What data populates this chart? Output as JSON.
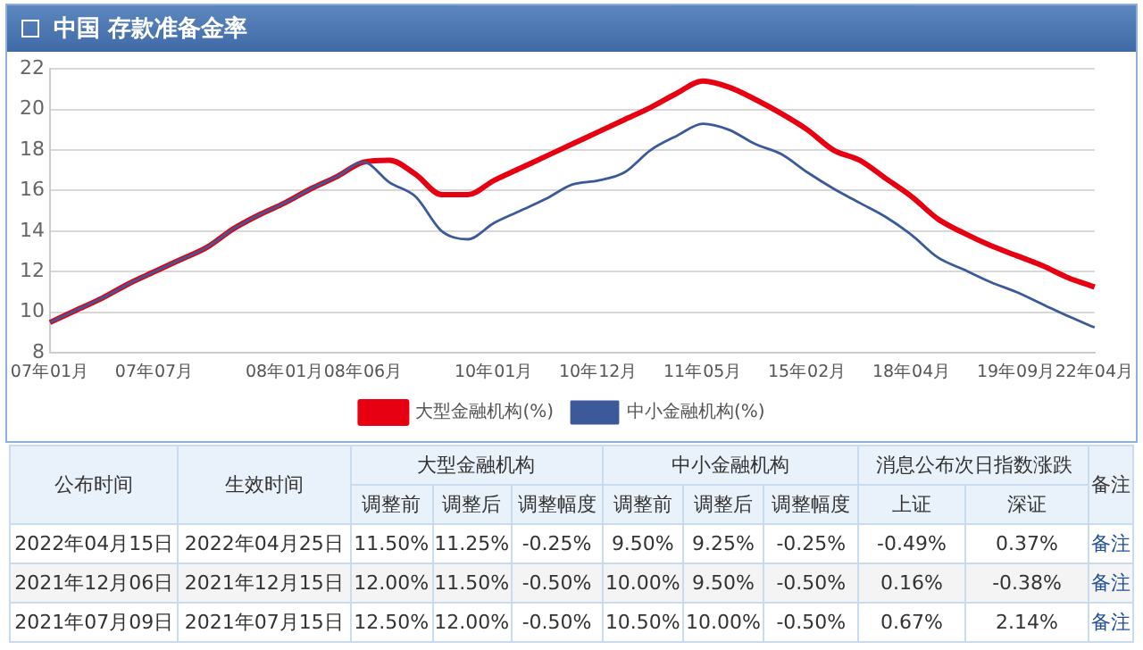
{
  "chart_data": [
    {
      "type": "line",
      "title": "中国 存款准备金率",
      "categories": [
        "07年01月",
        null,
        null,
        null,
        "07年07月",
        null,
        null,
        null,
        null,
        "08年01月",
        null,
        null,
        "08年06月",
        null,
        null,
        null,
        null,
        "10年01月",
        null,
        null,
        null,
        "10年12月",
        null,
        null,
        null,
        "11年05月",
        null,
        null,
        null,
        "15年02月",
        null,
        null,
        null,
        "18年04月",
        null,
        null,
        null,
        "19年09月",
        null,
        null,
        "22年04月"
      ],
      "series": [
        {
          "name": "大型金融机构(%)",
          "color": "#e60012",
          "values": [
            9.5,
            10.1,
            10.7,
            11.4,
            12.0,
            12.6,
            13.2,
            14.1,
            14.8,
            15.4,
            16.1,
            16.7,
            17.4,
            17.5,
            16.8,
            15.8,
            15.8,
            16.5,
            17.1,
            17.7,
            18.3,
            18.9,
            19.5,
            20.1,
            20.8,
            21.4,
            21.1,
            20.5,
            19.8,
            19.0,
            18.0,
            17.5,
            16.6,
            15.7,
            14.6,
            13.9,
            13.3,
            12.8,
            12.3,
            11.7,
            11.25
          ]
        },
        {
          "name": "中小金融机构(%)",
          "color": "#3c5a9a",
          "values": [
            9.5,
            10.1,
            10.7,
            11.4,
            12.0,
            12.6,
            13.2,
            14.1,
            14.8,
            15.4,
            16.1,
            16.7,
            17.4,
            16.4,
            15.7,
            14.0,
            13.6,
            14.4,
            15.0,
            15.6,
            16.3,
            16.5,
            16.9,
            18.0,
            18.7,
            19.3,
            19.0,
            18.3,
            17.8,
            16.9,
            16.1,
            15.4,
            14.7,
            13.8,
            12.7,
            12.1,
            11.5,
            11.0,
            10.4,
            9.8,
            9.25
          ]
        }
      ],
      "ylim": [
        8,
        22
      ],
      "yticks": [
        8,
        10,
        12,
        14,
        16,
        18,
        20,
        22
      ],
      "grid": "y",
      "legend": "bottom",
      "marker": "none",
      "line_style": "solid"
    },
    {
      "type": "other",
      "annotations": [
        "公布时间",
        "生效时间",
        "大型金融机构",
        "中小金融机构",
        "消息公布次日指数涨跌",
        "备注",
        "调整前",
        "调整后",
        "调整幅度",
        "调整前",
        "调整后",
        "调整幅度",
        "上证",
        "深证",
        "2022年04月15日",
        "2022年04月25日",
        "11.50%",
        "11.25%",
        "-0.25%",
        "9.50%",
        "9.25%",
        "-0.25%",
        "-0.49%",
        "0.37%",
        "备注",
        "2021年12月06日",
        "2021年12月15日",
        "12.00%",
        "11.50%",
        "-0.50%",
        "10.00%",
        "9.50%",
        "-0.50%",
        "0.16%",
        "-0.38%",
        "备注",
        "2021年07月09日",
        "2021年07月15日",
        "12.50%",
        "12.00%",
        "-0.50%",
        "10.50%",
        "10.00%",
        "-0.50%",
        "0.67%",
        "2.14%",
        "备注"
      ]
    }
  ]
}
